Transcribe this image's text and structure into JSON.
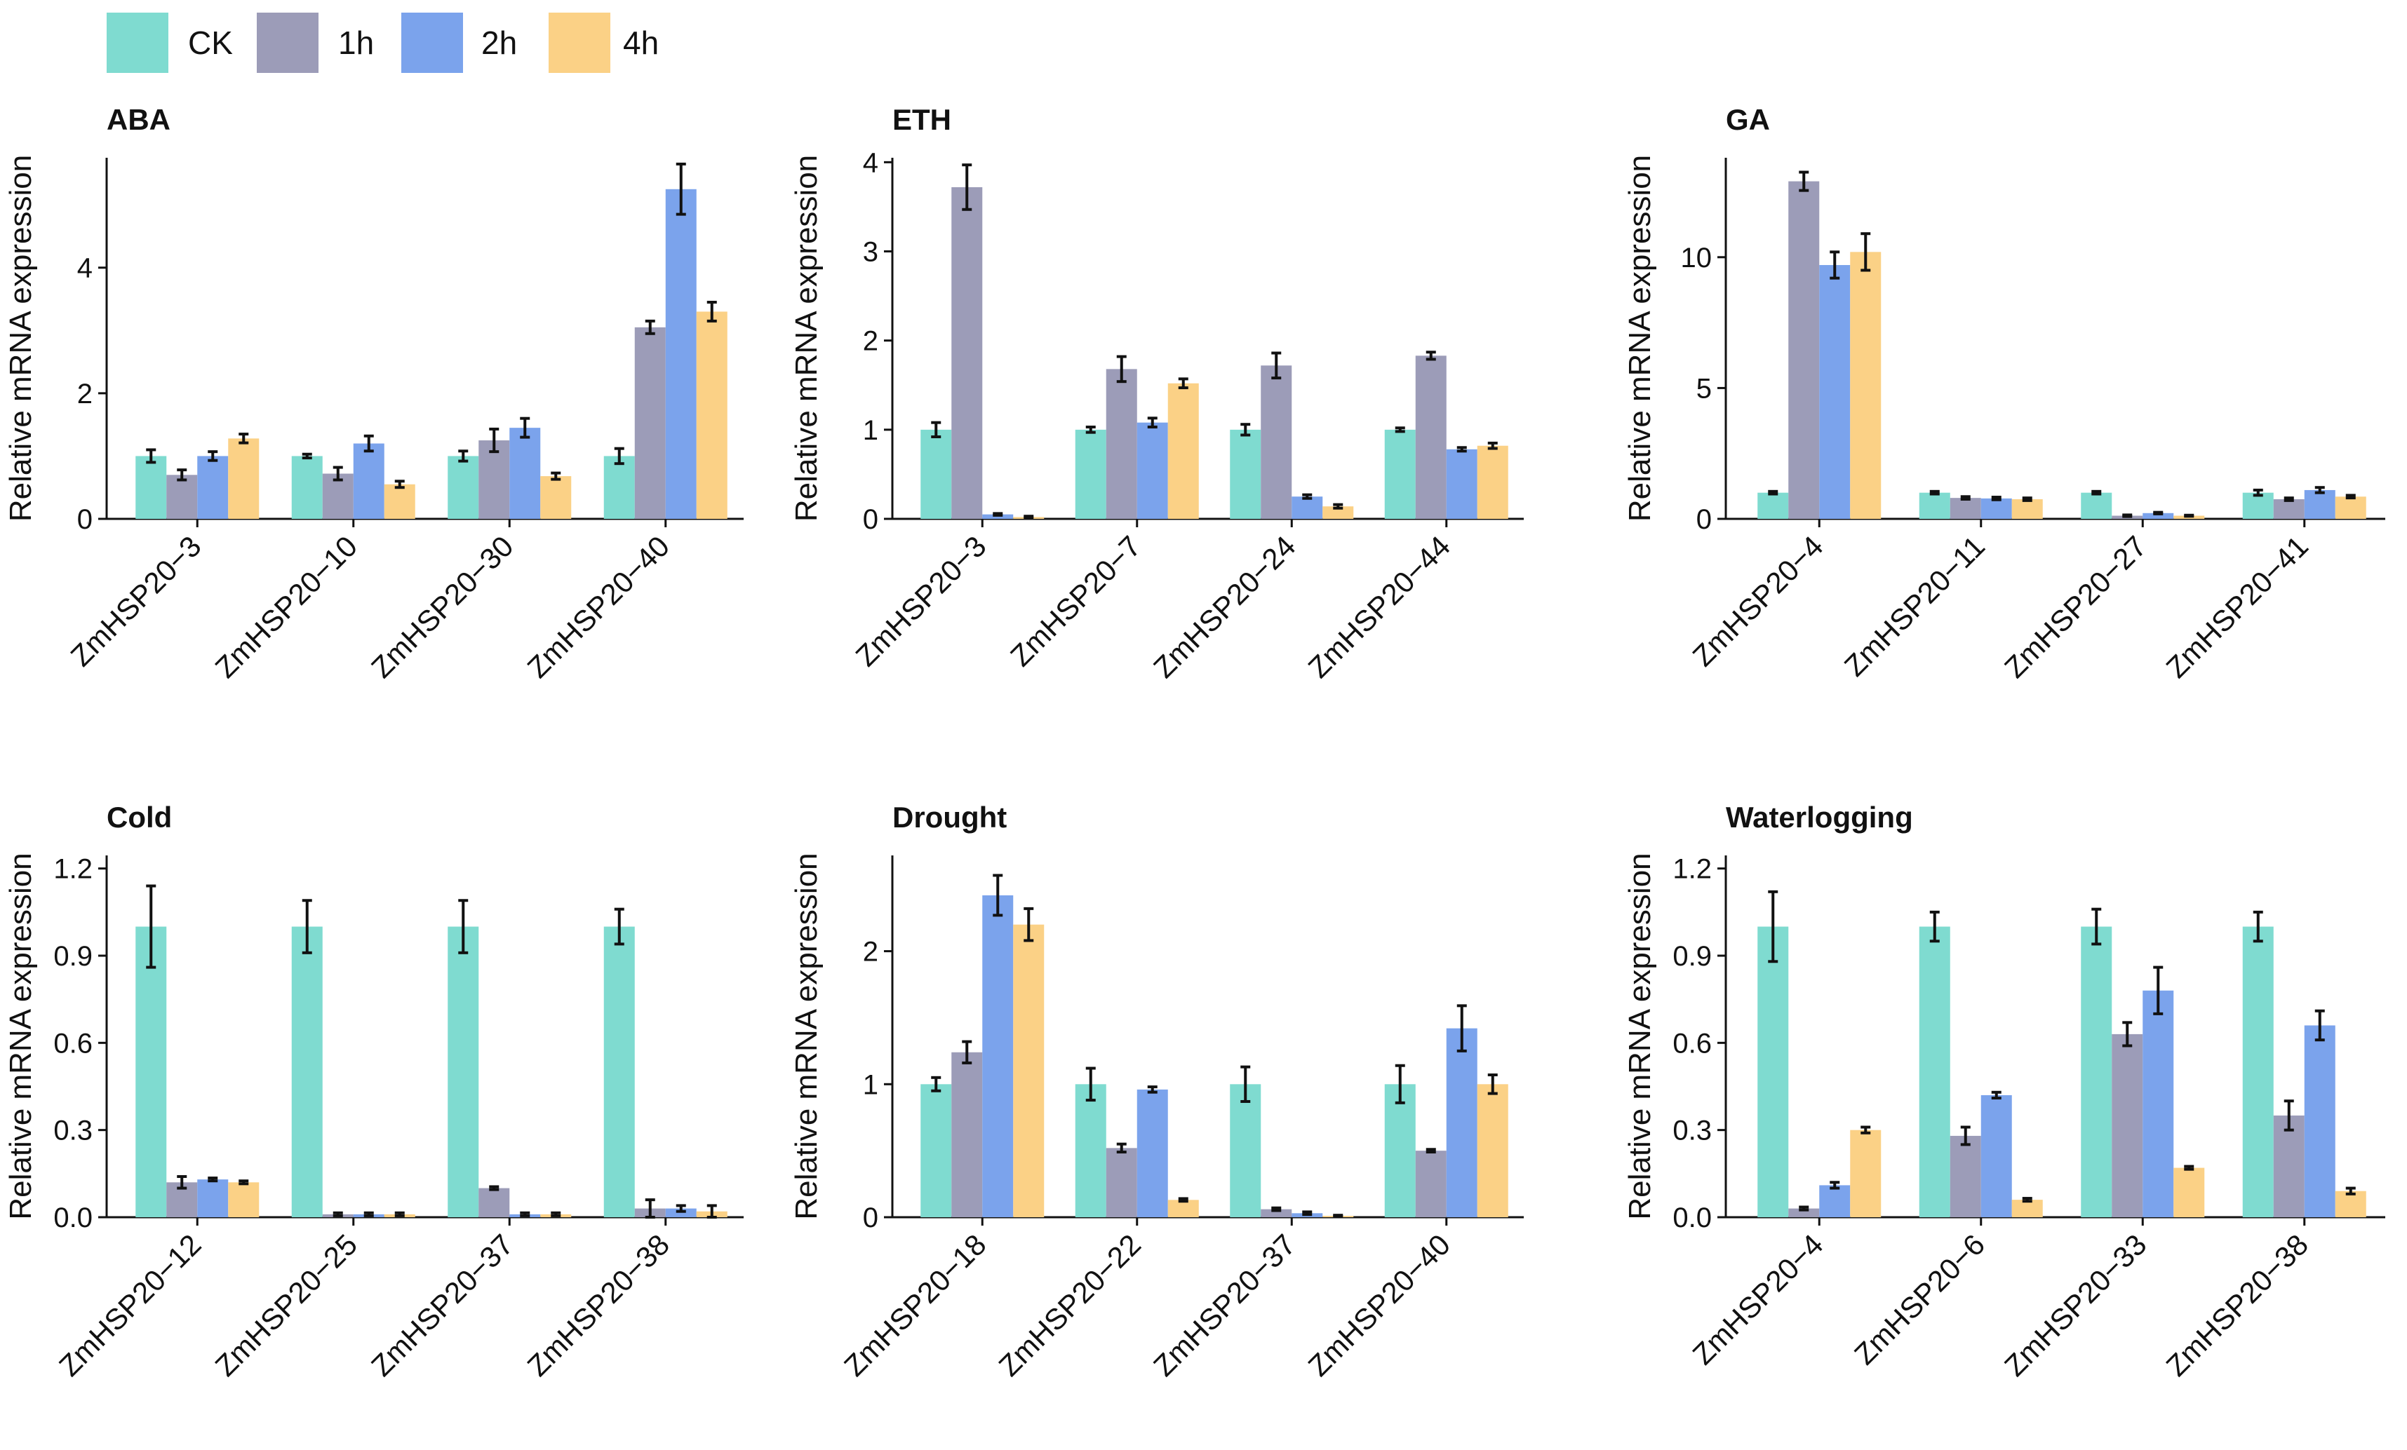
{
  "legend": {
    "items": [
      {
        "label": "CK",
        "color": "#7fdbd0"
      },
      {
        "label": "1h",
        "color": "#9c9cb8"
      },
      {
        "label": "2h",
        "color": "#7ba3ec"
      },
      {
        "label": "4h",
        "color": "#fbd186"
      }
    ]
  },
  "chart_data": [
    {
      "type": "bar",
      "title": "ABA",
      "ylabel": "Relative mRNA expression",
      "xlabel": "",
      "ylim": [
        0,
        5.75
      ],
      "yticks": [
        0,
        2,
        4
      ],
      "ytick_labels": [
        "0",
        "2",
        "4"
      ],
      "categories": [
        "ZmHSP20−3",
        "ZmHSP20−10",
        "ZmHSP20−30",
        "ZmHSP20−40"
      ],
      "series": [
        {
          "name": "CK",
          "values": [
            1.0,
            1.0,
            1.0,
            1.0
          ],
          "errors": [
            0.1,
            0.03,
            0.08,
            0.12
          ]
        },
        {
          "name": "1h",
          "values": [
            0.7,
            0.72,
            1.25,
            3.05
          ],
          "errors": [
            0.08,
            0.1,
            0.18,
            0.1
          ]
        },
        {
          "name": "2h",
          "values": [
            1.0,
            1.2,
            1.45,
            5.25
          ],
          "errors": [
            0.07,
            0.12,
            0.15,
            0.4
          ]
        },
        {
          "name": "4h",
          "values": [
            1.28,
            0.55,
            0.68,
            3.3
          ],
          "errors": [
            0.07,
            0.05,
            0.05,
            0.15
          ]
        }
      ]
    },
    {
      "type": "bar",
      "title": "ETH",
      "ylabel": "Relative mRNA expression",
      "xlabel": "",
      "ylim": [
        0,
        4.05
      ],
      "yticks": [
        0,
        1,
        2,
        3,
        4
      ],
      "ytick_labels": [
        "0",
        "1",
        "2",
        "3",
        "4"
      ],
      "categories": [
        "ZmHSP20−3",
        "ZmHSP20−7",
        "ZmHSP20−24",
        "ZmHSP20−44"
      ],
      "series": [
        {
          "name": "CK",
          "values": [
            1.0,
            1.0,
            1.0,
            1.0
          ],
          "errors": [
            0.08,
            0.03,
            0.06,
            0.02
          ]
        },
        {
          "name": "1h",
          "values": [
            3.72,
            1.68,
            1.72,
            1.83
          ],
          "errors": [
            0.25,
            0.14,
            0.14,
            0.04
          ]
        },
        {
          "name": "2h",
          "values": [
            0.05,
            1.08,
            0.25,
            0.78
          ],
          "errors": [
            0.01,
            0.05,
            0.02,
            0.02
          ]
        },
        {
          "name": "4h",
          "values": [
            0.02,
            1.52,
            0.14,
            0.82
          ],
          "errors": [
            0.01,
            0.05,
            0.02,
            0.03
          ]
        }
      ]
    },
    {
      "type": "bar",
      "title": "GA",
      "ylabel": "Relative mRNA expression",
      "xlabel": "",
      "ylim": [
        0,
        13.8
      ],
      "yticks": [
        0,
        5,
        10
      ],
      "ytick_labels": [
        "0",
        "5",
        "10"
      ],
      "categories": [
        "ZmHSP20−4",
        "ZmHSP20−11",
        "ZmHSP20−27",
        "ZmHSP20−41"
      ],
      "series": [
        {
          "name": "CK",
          "values": [
            1.0,
            1.0,
            1.0,
            1.0
          ],
          "errors": [
            0.05,
            0.05,
            0.05,
            0.1
          ]
        },
        {
          "name": "1h",
          "values": [
            12.9,
            0.8,
            0.12,
            0.75
          ],
          "errors": [
            0.35,
            0.05,
            0.03,
            0.05
          ]
        },
        {
          "name": "2h",
          "values": [
            9.7,
            0.78,
            0.22,
            1.1
          ],
          "errors": [
            0.5,
            0.05,
            0.03,
            0.1
          ]
        },
        {
          "name": "4h",
          "values": [
            10.2,
            0.75,
            0.12,
            0.85
          ],
          "errors": [
            0.7,
            0.05,
            0.02,
            0.05
          ]
        }
      ]
    },
    {
      "type": "bar",
      "title": "Cold",
      "ylabel": "Relative mRNA expression",
      "xlabel": "",
      "ylim": [
        0,
        1.245
      ],
      "yticks": [
        0.0,
        0.3,
        0.6,
        0.9,
        1.2
      ],
      "ytick_labels": [
        "0.0",
        "0.3",
        "0.6",
        "0.9",
        "1.2"
      ],
      "categories": [
        "ZmHSP20−12",
        "ZmHSP20−25",
        "ZmHSP20−37",
        "ZmHSP20−38"
      ],
      "series": [
        {
          "name": "CK",
          "values": [
            1.0,
            1.0,
            1.0,
            1.0
          ],
          "errors": [
            0.14,
            0.09,
            0.09,
            0.06
          ]
        },
        {
          "name": "1h",
          "values": [
            0.12,
            0.01,
            0.1,
            0.03
          ],
          "errors": [
            0.02,
            0.005,
            0.005,
            0.03
          ]
        },
        {
          "name": "2h",
          "values": [
            0.13,
            0.01,
            0.01,
            0.03
          ],
          "errors": [
            0.005,
            0.005,
            0.005,
            0.01
          ]
        },
        {
          "name": "4h",
          "values": [
            0.12,
            0.01,
            0.01,
            0.02
          ],
          "errors": [
            0.005,
            0.005,
            0.005,
            0.02
          ]
        }
      ]
    },
    {
      "type": "bar",
      "title": "Drought",
      "ylabel": "Relative mRNA expression",
      "xlabel": "",
      "ylim": [
        0,
        2.72
      ],
      "yticks": [
        0,
        1,
        2
      ],
      "ytick_labels": [
        "0",
        "1",
        "2"
      ],
      "categories": [
        "ZmHSP20−18",
        "ZmHSP20−22",
        "ZmHSP20−37",
        "ZmHSP20−40"
      ],
      "series": [
        {
          "name": "CK",
          "values": [
            1.0,
            1.0,
            1.0,
            1.0
          ],
          "errors": [
            0.05,
            0.12,
            0.13,
            0.14
          ]
        },
        {
          "name": "1h",
          "values": [
            1.24,
            0.52,
            0.06,
            0.5
          ],
          "errors": [
            0.08,
            0.03,
            0.01,
            0.01
          ]
        },
        {
          "name": "2h",
          "values": [
            2.42,
            0.96,
            0.03,
            1.42
          ],
          "errors": [
            0.15,
            0.02,
            0.01,
            0.17
          ]
        },
        {
          "name": "4h",
          "values": [
            2.2,
            0.13,
            0.01,
            1.0
          ],
          "errors": [
            0.12,
            0.01,
            0.005,
            0.07
          ]
        }
      ]
    },
    {
      "type": "bar",
      "title": "Waterlogging",
      "ylabel": "Relative mRNA expression",
      "xlabel": "",
      "ylim": [
        0,
        1.245
      ],
      "yticks": [
        0.0,
        0.3,
        0.6,
        0.9,
        1.2
      ],
      "ytick_labels": [
        "0.0",
        "0.3",
        "0.6",
        "0.9",
        "1.2"
      ],
      "categories": [
        "ZmHSP20−4",
        "ZmHSP20−6",
        "ZmHSP20−33",
        "ZmHSP20−38"
      ],
      "series": [
        {
          "name": "CK",
          "values": [
            1.0,
            1.0,
            1.0,
            1.0
          ],
          "errors": [
            0.12,
            0.05,
            0.06,
            0.05
          ]
        },
        {
          "name": "1h",
          "values": [
            0.03,
            0.28,
            0.63,
            0.35
          ],
          "errors": [
            0.005,
            0.03,
            0.04,
            0.05
          ]
        },
        {
          "name": "2h",
          "values": [
            0.11,
            0.42,
            0.78,
            0.66
          ],
          "errors": [
            0.01,
            0.01,
            0.08,
            0.05
          ]
        },
        {
          "name": "4h",
          "values": [
            0.3,
            0.06,
            0.17,
            0.09
          ],
          "errors": [
            0.01,
            0.005,
            0.005,
            0.01
          ]
        }
      ]
    }
  ]
}
